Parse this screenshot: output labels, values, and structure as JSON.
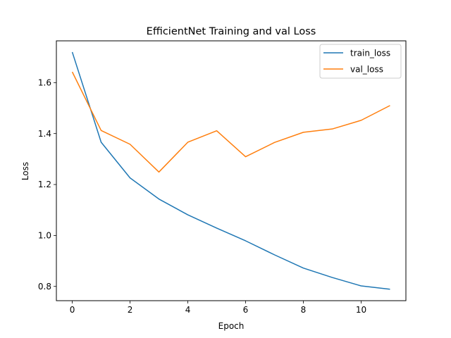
{
  "chart_data": {
    "type": "line",
    "title": "EfficientNet Training and val Loss",
    "xlabel": "Epoch",
    "ylabel": "Loss",
    "xlim": [
      -0.55,
      11.55
    ],
    "ylim": [
      0.744,
      1.764
    ],
    "xticks": [
      0,
      2,
      4,
      6,
      8,
      10
    ],
    "yticks": [
      0.8,
      1.0,
      1.2,
      1.4,
      1.6
    ],
    "x": [
      0,
      1,
      2,
      3,
      4,
      5,
      6,
      7,
      8,
      9,
      10,
      11
    ],
    "series": [
      {
        "name": "train_loss",
        "color": "#1f77b4",
        "values": [
          1.72,
          1.366,
          1.226,
          1.143,
          1.081,
          1.029,
          0.979,
          0.924,
          0.872,
          0.835,
          0.802,
          0.789
        ]
      },
      {
        "name": "val_loss",
        "color": "#ff7f0e",
        "values": [
          1.642,
          1.412,
          1.358,
          1.249,
          1.366,
          1.411,
          1.309,
          1.365,
          1.405,
          1.418,
          1.452,
          1.51
        ]
      }
    ],
    "grid": false,
    "legend_position": "top-right"
  }
}
